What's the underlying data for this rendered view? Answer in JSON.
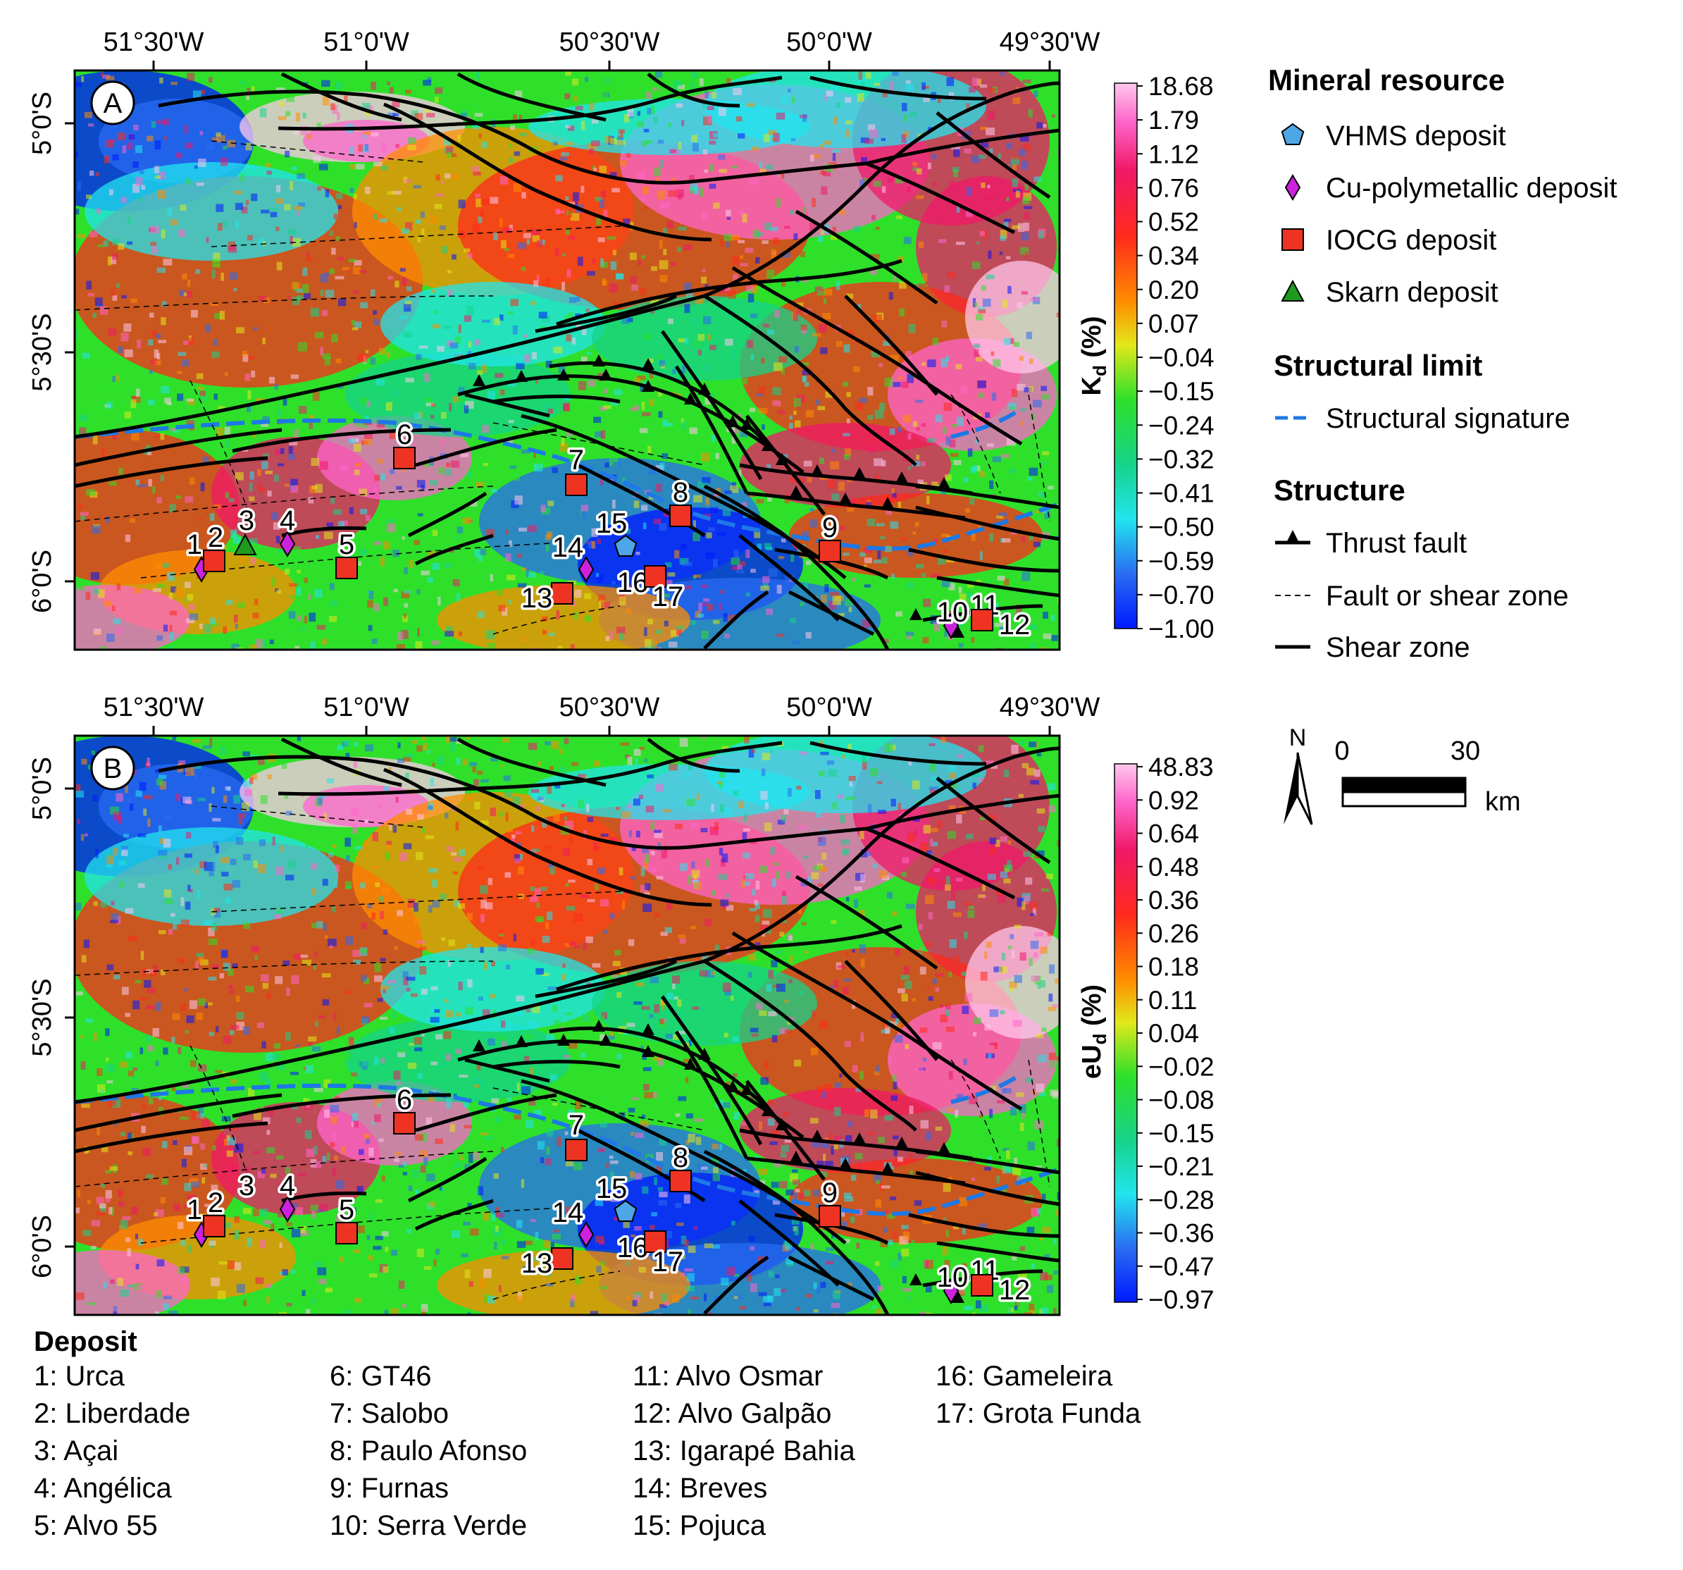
{
  "panels": [
    {
      "letter": "A",
      "colorbar_label_main": "K",
      "colorbar_label_sub": "d",
      "colorbar_label_unit": " (%)",
      "colorbar_ticks": [
        "18.68",
        "1.79",
        "1.12",
        "0.76",
        "0.52",
        "0.34",
        "0.20",
        "0.07",
        "−0.04",
        "−0.15",
        "−0.24",
        "−0.32",
        "−0.41",
        "−0.50",
        "−0.59",
        "−0.70",
        "−1.00"
      ],
      "show_deposit_3_symbol": true
    },
    {
      "letter": "B",
      "colorbar_label_main": "eU",
      "colorbar_label_sub": "d",
      "colorbar_label_unit": " (%)",
      "colorbar_ticks": [
        "48.83",
        "0.92",
        "0.64",
        "0.48",
        "0.36",
        "0.26",
        "0.18",
        "0.11",
        "0.04",
        "−0.02",
        "−0.08",
        "−0.15",
        "−0.21",
        "−0.28",
        "−0.36",
        "−0.47",
        "−0.97"
      ],
      "show_deposit_3_symbol": false
    }
  ],
  "lon_labels": [
    "51°30'W",
    "51°0'W",
    "50°30'W",
    "50°0'W",
    "49°30'W"
  ],
  "lat_labels": [
    "5°0'S",
    "5°30'S",
    "6°0'S"
  ],
  "colormap": [
    "#0018ff",
    "#2a6cf2",
    "#22e4ee",
    "#16d38a",
    "#2ee02a",
    "#e2e81a",
    "#ff8c00",
    "#ff2a1c",
    "#f01868",
    "#ff66cc",
    "#ffc8ec"
  ],
  "legend": {
    "mineral_title": "Mineral resource",
    "mineral_items": [
      {
        "label": "VHMS deposit",
        "symbol": "pentagon",
        "color": "#4da6e6"
      },
      {
        "label": "Cu-polymetallic deposit",
        "symbol": "diamond",
        "color": "#cc22dd"
      },
      {
        "label": "IOCG deposit",
        "symbol": "square",
        "color": "#ee3322"
      },
      {
        "label": "Skarn deposit",
        "symbol": "triangle",
        "color": "#1e9a1e"
      }
    ],
    "struct_limit_title": "Structural limit",
    "struct_limit_items": [
      {
        "label": "Structural signature",
        "color": "#1e78e6"
      }
    ],
    "structure_title": "Structure",
    "structure_items": [
      {
        "label": "Thrust fault"
      },
      {
        "label": "Fault or shear zone"
      },
      {
        "label": "Shear zone"
      }
    ]
  },
  "scale_bar": {
    "north": "N",
    "zero": "0",
    "max": "30",
    "unit": "km"
  },
  "deposits_title": "Deposit",
  "deposits": [
    {
      "num": "1",
      "name": "1: Urca",
      "type": "diamond"
    },
    {
      "num": "2",
      "name": "2: Liberdade",
      "type": "square"
    },
    {
      "num": "3",
      "name": "3: Açai",
      "type": "triangle"
    },
    {
      "num": "4",
      "name": "4: Angélica",
      "type": "diamond"
    },
    {
      "num": "5",
      "name": "5: Alvo 55",
      "type": "square"
    },
    {
      "num": "6",
      "name": "6: GT46",
      "type": "square"
    },
    {
      "num": "7",
      "name": "7: Salobo",
      "type": "square"
    },
    {
      "num": "8",
      "name": "8: Paulo Afonso",
      "type": "square"
    },
    {
      "num": "9",
      "name": "9: Furnas",
      "type": "square"
    },
    {
      "num": "10",
      "name": "10: Serra Verde",
      "type": "diamond"
    },
    {
      "num": "11",
      "name": "11: Alvo Osmar",
      "type": "square"
    },
    {
      "num": "12",
      "name": "12: Alvo Galpão",
      "type": "square"
    },
    {
      "num": "13",
      "name": "13: Igarapé Bahia",
      "type": "square"
    },
    {
      "num": "14",
      "name": "14: Breves",
      "type": "diamond"
    },
    {
      "num": "15",
      "name": "15: Pojuca",
      "type": "pentagon"
    },
    {
      "num": "16",
      "name": "16: Gameleira",
      "type": "square"
    },
    {
      "num": "17",
      "name": "17: Grota Funda",
      "type": "square"
    }
  ]
}
